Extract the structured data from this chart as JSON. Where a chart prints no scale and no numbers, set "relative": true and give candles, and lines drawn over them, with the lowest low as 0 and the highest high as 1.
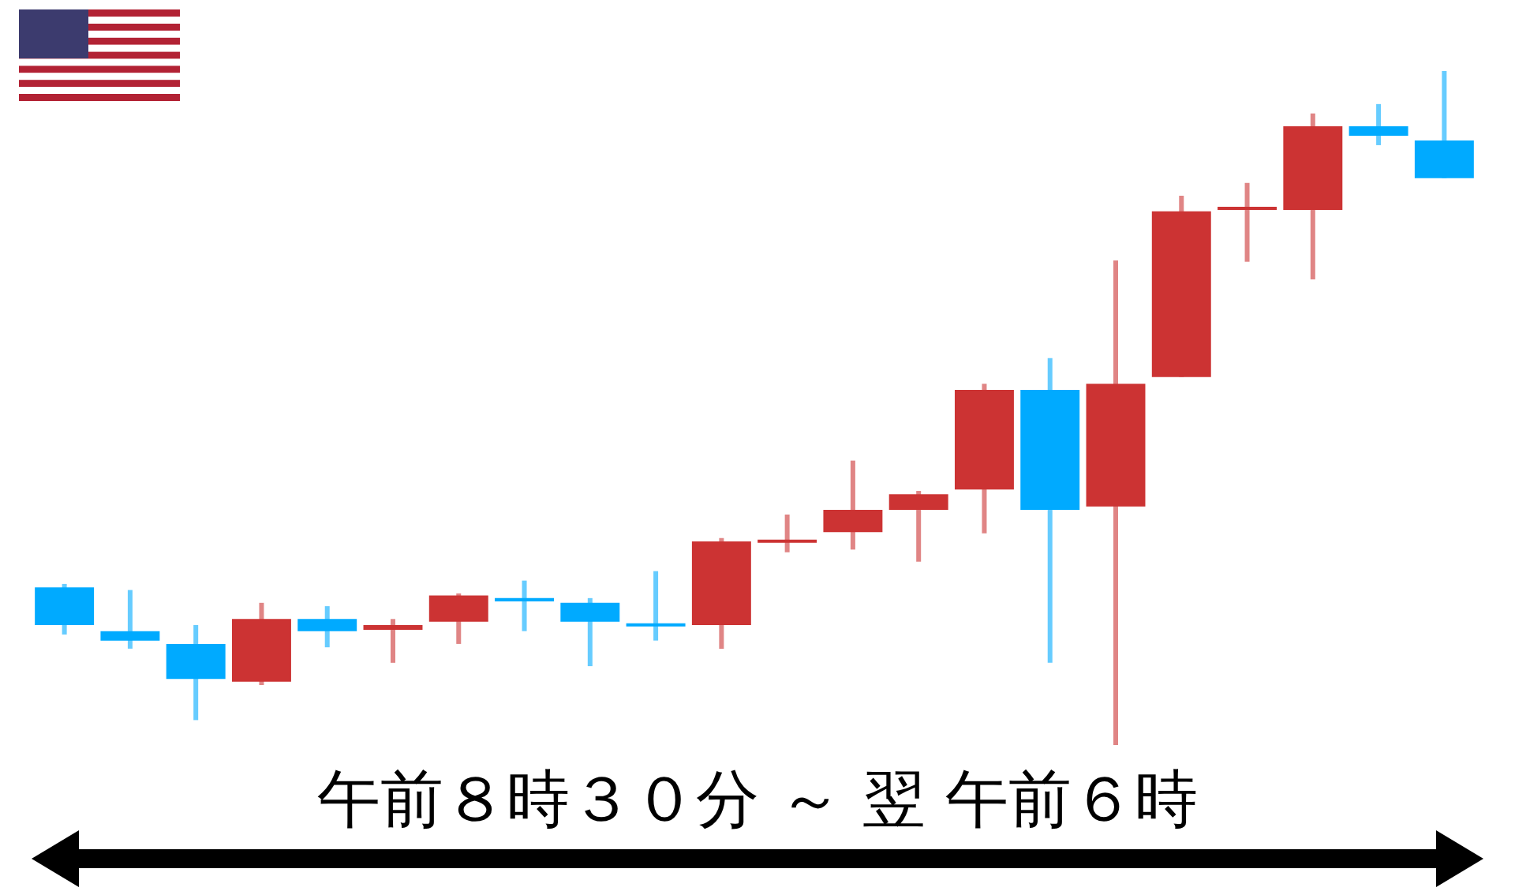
{
  "chart_data": {
    "type": "candlestick",
    "relative": true,
    "categories": [
      null,
      null,
      null,
      null,
      null,
      null,
      null,
      null,
      null,
      null,
      null,
      null,
      null,
      null,
      null,
      null,
      null,
      null,
      null,
      null,
      null,
      null
    ],
    "ohlc": [
      [
        0.234,
        0.239,
        0.164,
        0.178
      ],
      [
        0.169,
        0.23,
        0.143,
        0.155
      ],
      [
        0.15,
        0.178,
        0.037,
        0.098
      ],
      [
        0.094,
        0.211,
        0.089,
        0.187
      ],
      [
        0.187,
        0.206,
        0.145,
        0.169
      ],
      [
        0.171,
        0.187,
        0.122,
        0.178
      ],
      [
        0.183,
        0.225,
        0.15,
        0.222
      ],
      [
        0.218,
        0.244,
        0.169,
        0.213
      ],
      [
        0.211,
        0.218,
        0.117,
        0.183
      ],
      [
        0.18,
        0.258,
        0.155,
        0.176
      ],
      [
        0.178,
        0.307,
        0.143,
        0.302
      ],
      [
        0.3,
        0.342,
        0.286,
        0.304
      ],
      [
        0.316,
        0.422,
        0.29,
        0.349
      ],
      [
        0.349,
        0.377,
        0.272,
        0.372
      ],
      [
        0.379,
        0.536,
        0.314,
        0.527
      ],
      [
        0.527,
        0.574,
        0.122,
        0.349
      ],
      [
        0.354,
        0.719,
        0,
        0.536
      ],
      [
        0.546,
        0.815,
        0.546,
        0.792
      ],
      [
        0.794,
        0.834,
        0.717,
        0.796
      ],
      [
        0.794,
        0.937,
        0.691,
        0.918
      ],
      [
        0.918,
        0.951,
        0.89,
        0.904
      ],
      [
        0.897,
        1,
        0.841,
        0.841
      ]
    ],
    "colors": [
      "#00aaff",
      "#00aaff",
      "#00aaff",
      "#cc3333",
      "#00aaff",
      "#cc3333",
      "#cc3333",
      "#00aaff",
      "#00aaff",
      "#00aaff",
      "#cc3333",
      "#cc3333",
      "#cc3333",
      "#cc3333",
      "#cc3333",
      "#00aaff",
      "#cc3333",
      "#cc3333",
      "#cc3333",
      "#cc3333",
      "#00aaff",
      "#00aaff"
    ],
    "annotations": [
      "午前８時３０分 ～ 翌 午前６時"
    ],
    "legend": false,
    "tick_labels": false
  }
}
